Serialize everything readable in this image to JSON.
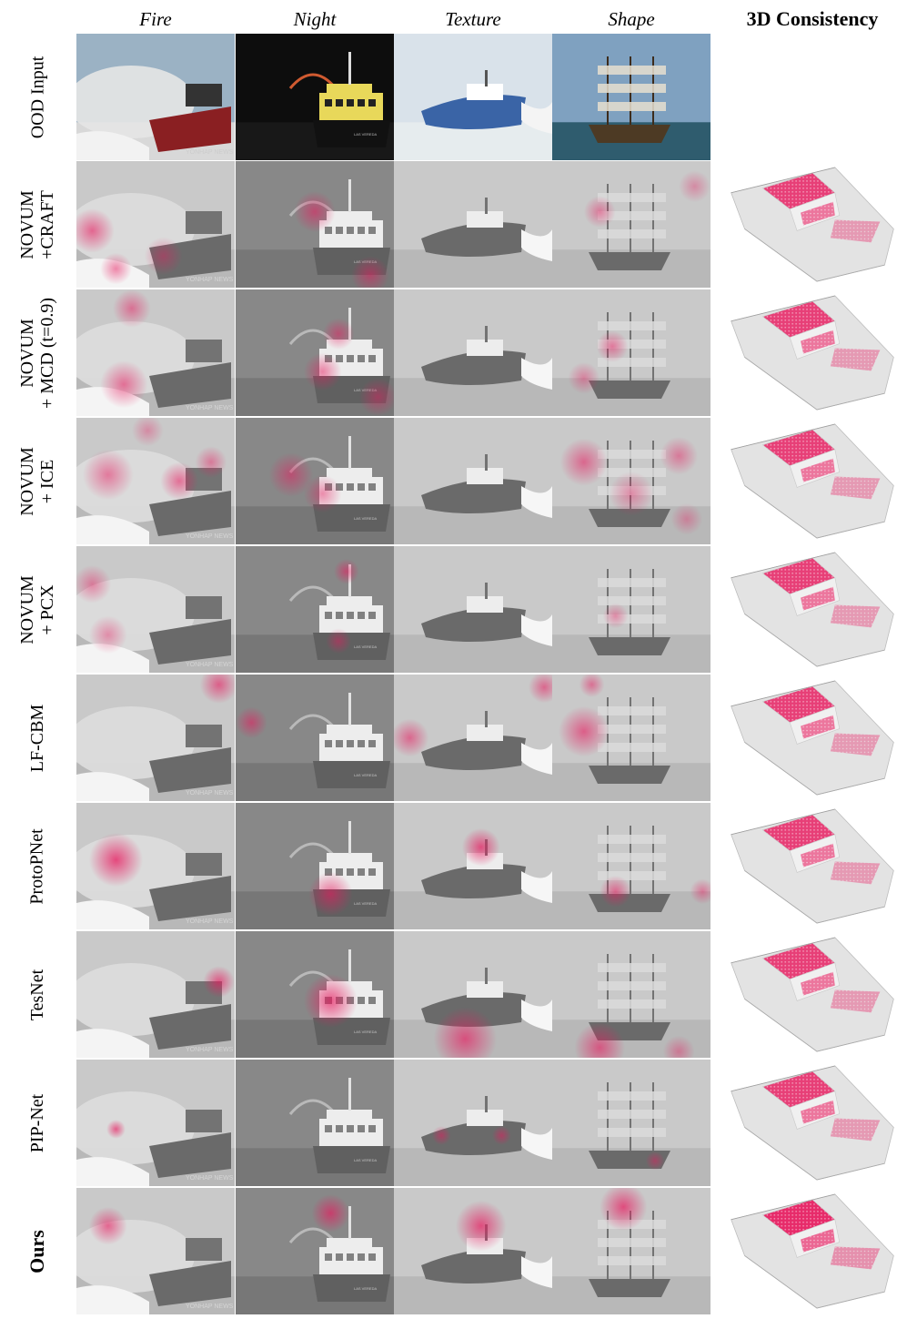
{
  "column_headers": {
    "fire": "Fire",
    "night": "Night",
    "texture": "Texture",
    "shape": "Shape",
    "consistency": "3D Consistency"
  },
  "rows": [
    {
      "id": "ood-input",
      "label_lines": [
        "OOD Input"
      ]
    },
    {
      "id": "novum-craft",
      "label_lines": [
        "NOVUM",
        "+CRAFT"
      ]
    },
    {
      "id": "novum-mcd",
      "label_lines": [
        "NOVUM",
        "+ MCD (t=0.9)"
      ]
    },
    {
      "id": "novum-ice",
      "label_lines": [
        "NOVUM",
        "+ ICE"
      ]
    },
    {
      "id": "novum-pcx",
      "label_lines": [
        "NOVUM",
        "+ PCX"
      ]
    },
    {
      "id": "lf-cbm",
      "label_lines": [
        "LF-CBM"
      ]
    },
    {
      "id": "protopnet",
      "label_lines": [
        "ProtoPNet"
      ]
    },
    {
      "id": "tesnet",
      "label_lines": [
        "TesNet"
      ]
    },
    {
      "id": "pip-net",
      "label_lines": [
        "PIP-Net"
      ]
    },
    {
      "id": "ours",
      "label_lines": [
        "Ours"
      ],
      "bold": true
    }
  ],
  "watermark_text": "YONHAP NEWS",
  "ship_label_text": "LAS VEREDA",
  "colors": {
    "highlight": "#e8175d",
    "gray_bg": "#8e8e8e",
    "night_sky": "#111111",
    "water": "#2f5c6e"
  }
}
